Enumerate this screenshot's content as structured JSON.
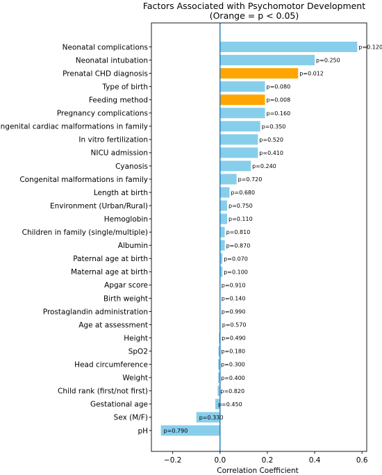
{
  "chart_data": {
    "type": "bar",
    "orientation": "horizontal",
    "title": "Factors Associated with Psychomotor Development",
    "subtitle": "(Orange = p < 0.05)",
    "xlabel": "Correlation Coefficient",
    "ylabel": "",
    "xlim": [
      -0.29,
      0.62
    ],
    "xticks": [
      "−0.2",
      "0.0",
      "0.2",
      "0.4",
      "0.6"
    ],
    "xtick_values": [
      -0.2,
      0.0,
      0.2,
      0.4,
      0.6
    ],
    "reference_line_x": 0.0,
    "colors": {
      "default": "#87ceeb",
      "significant": "#ffa500",
      "zero_line": "#1f77b4"
    },
    "grid": false,
    "bars": [
      {
        "label": "Neonatal complications",
        "value": 0.58,
        "p_text": "p=0.120",
        "significant": false
      },
      {
        "label": "Neonatal intubation",
        "value": 0.4,
        "p_text": "p=0.250",
        "significant": false
      },
      {
        "label": "Prenatal CHD diagnosis",
        "value": 0.33,
        "p_text": "p=0.012",
        "significant": true
      },
      {
        "label": "Type of birth",
        "value": 0.19,
        "p_text": "p=0.080",
        "significant": false
      },
      {
        "label": "Feeding method",
        "value": 0.19,
        "p_text": "p=0.008",
        "significant": true
      },
      {
        "label": "Pregnancy complications",
        "value": 0.19,
        "p_text": "p=0.160",
        "significant": false
      },
      {
        "label": "Congenital cardiac malformations in family",
        "value": 0.17,
        "p_text": "p=0.350",
        "significant": false
      },
      {
        "label": "In vitro fertilization",
        "value": 0.16,
        "p_text": "p=0.520",
        "significant": false
      },
      {
        "label": "NICU admission",
        "value": 0.16,
        "p_text": "p=0.410",
        "significant": false
      },
      {
        "label": "Cyanosis",
        "value": 0.13,
        "p_text": "p=0.240",
        "significant": false
      },
      {
        "label": "Congenital malformations in family",
        "value": 0.07,
        "p_text": "p=0.720",
        "significant": false
      },
      {
        "label": "Length at birth",
        "value": 0.04,
        "p_text": "p=0.680",
        "significant": false
      },
      {
        "label": "Environment (Urban/Rural)",
        "value": 0.03,
        "p_text": "p=0.750",
        "significant": false
      },
      {
        "label": "Hemoglobin",
        "value": 0.03,
        "p_text": "p=0.110",
        "significant": false
      },
      {
        "label": "Children in family (single/multiple)",
        "value": 0.02,
        "p_text": "p=0.810",
        "significant": false
      },
      {
        "label": "Albumin",
        "value": 0.02,
        "p_text": "p=0.870",
        "significant": false
      },
      {
        "label": "Paternal age at birth",
        "value": 0.01,
        "p_text": "p=0.070",
        "significant": false
      },
      {
        "label": "Maternal age at birth",
        "value": 0.01,
        "p_text": "p=0.100",
        "significant": false
      },
      {
        "label": "Apgar score",
        "value": 0.0,
        "p_text": "p=0.910",
        "significant": false
      },
      {
        "label": "Birth weight",
        "value": 0.0,
        "p_text": "p=0.140",
        "significant": false
      },
      {
        "label": "Prostaglandin administration",
        "value": 0.0,
        "p_text": "p=0.990",
        "significant": false
      },
      {
        "label": "Age at assessment",
        "value": -0.003,
        "p_text": "p=0.570",
        "significant": false
      },
      {
        "label": "Height",
        "value": -0.005,
        "p_text": "p=0.490",
        "significant": false
      },
      {
        "label": "SpO2",
        "value": -0.007,
        "p_text": "p=0.180",
        "significant": false
      },
      {
        "label": "Head circumference",
        "value": -0.008,
        "p_text": "p=0.300",
        "significant": false
      },
      {
        "label": "Weight",
        "value": -0.008,
        "p_text": "p=0.400",
        "significant": false
      },
      {
        "label": "Child rank (first/not first)",
        "value": -0.01,
        "p_text": "p=0.820",
        "significant": false
      },
      {
        "label": "Gestational age",
        "value": -0.02,
        "p_text": "p=0.450",
        "significant": false
      },
      {
        "label": "Sex (M/F)",
        "value": -0.1,
        "p_text": "p=0.330",
        "significant": false
      },
      {
        "label": "pH",
        "value": -0.25,
        "p_text": "p=0.790",
        "significant": false
      }
    ]
  }
}
